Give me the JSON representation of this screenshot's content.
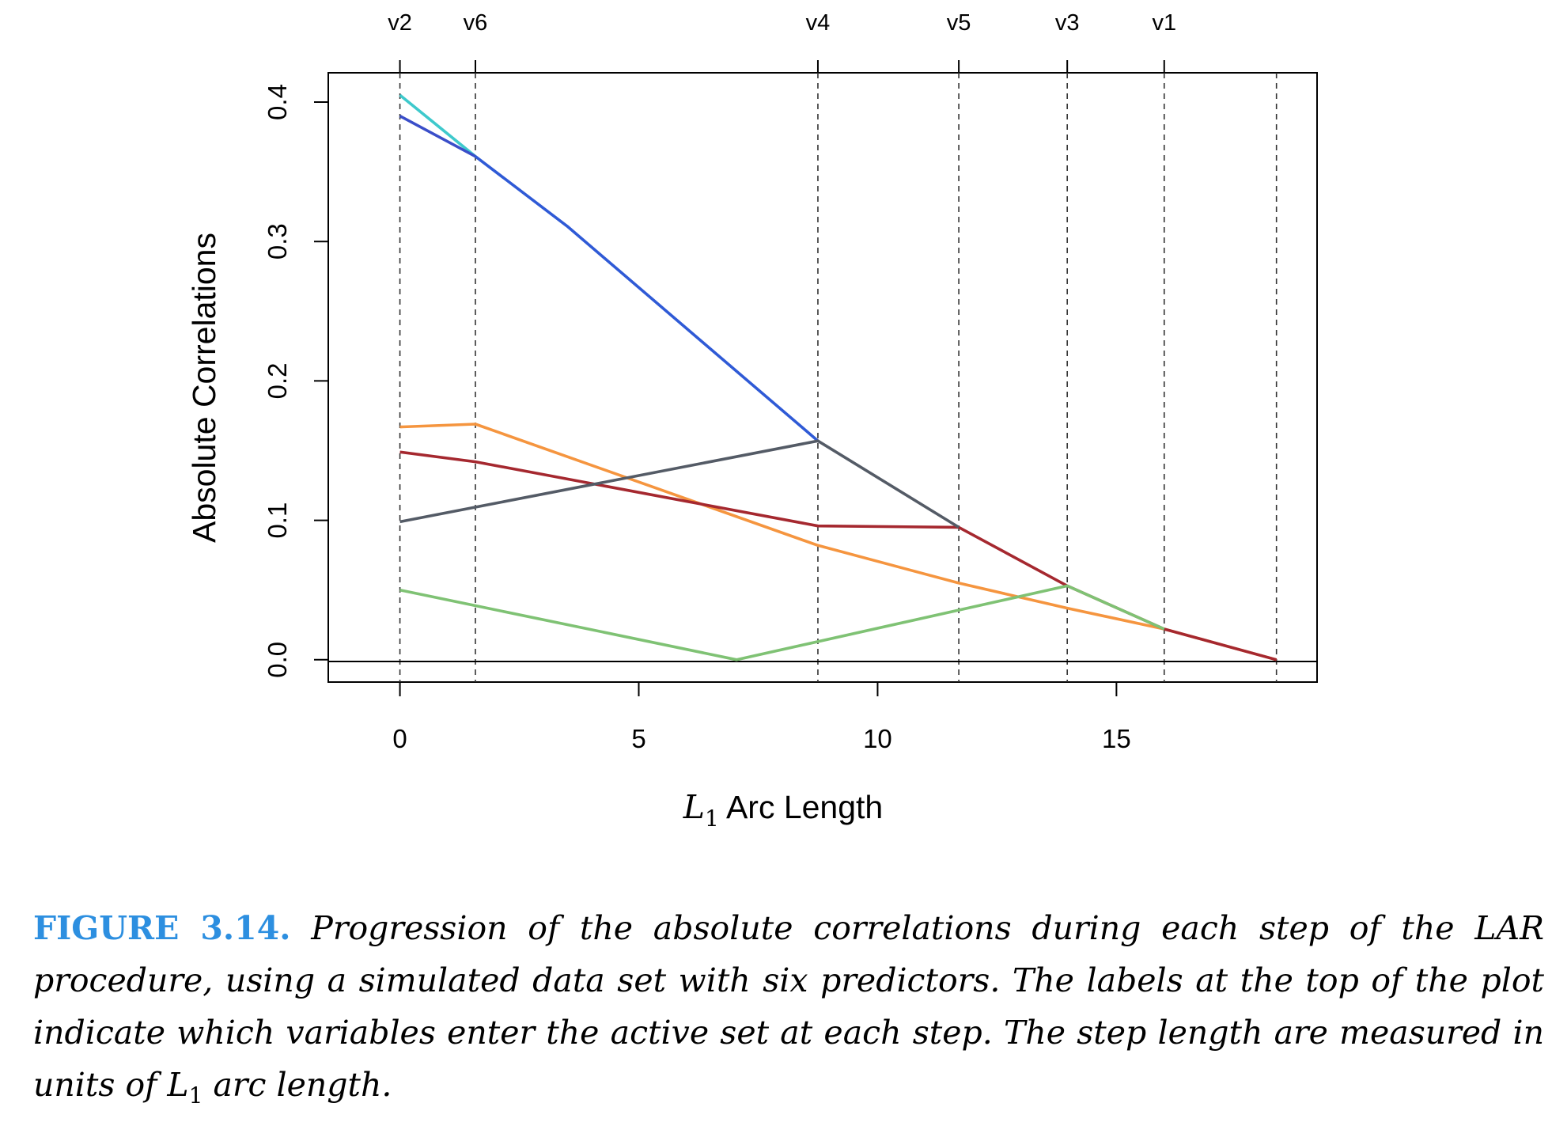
{
  "chart_data": {
    "type": "line",
    "xlabel_var": "L",
    "xlabel_sub": "1",
    "xlabel_rest": " Arc Length",
    "ylabel": "Absolute Correlations",
    "xlim": [
      -1.5,
      19.2
    ],
    "ylim": [
      -0.016,
      0.421
    ],
    "xticks": [
      0,
      5,
      10,
      15
    ],
    "yticks": [
      0.0,
      0.1,
      0.2,
      0.3,
      0.4
    ],
    "ytick_labels": [
      "0.0",
      "0.1",
      "0.2",
      "0.3",
      "0.4"
    ],
    "grid": false,
    "steps": [
      {
        "label": "v2",
        "x": 0.0
      },
      {
        "label": "v6",
        "x": 1.58
      },
      {
        "label": "v4",
        "x": 8.75
      },
      {
        "label": "v5",
        "x": 11.7
      },
      {
        "label": "v3",
        "x": 13.97
      },
      {
        "label": "v1",
        "x": 16.0
      },
      {
        "label": "",
        "x": 18.35
      }
    ],
    "series": [
      {
        "color": "#3ec9cc",
        "x": [
          0,
          1.58
        ],
        "y": [
          0.405,
          0.361
        ]
      },
      {
        "color": "#3a4ec9",
        "x": [
          0,
          1.58
        ],
        "y": [
          0.39,
          0.361
        ]
      },
      {
        "color": "#2f5ad6",
        "x": [
          1.58,
          3.5,
          8.75
        ],
        "y": [
          0.361,
          0.311,
          0.157
        ]
      },
      {
        "color": "#f5953f",
        "x": [
          0,
          1.58,
          8.75,
          11.7,
          13.97,
          16.0,
          18.35
        ],
        "y": [
          0.167,
          0.169,
          0.082,
          0.055,
          0.037,
          0.022,
          0.0
        ]
      },
      {
        "color": "#a5282f",
        "x": [
          0,
          1.58,
          8.75,
          11.7,
          13.97,
          16.0,
          18.35
        ],
        "y": [
          0.149,
          0.142,
          0.096,
          0.095,
          0.053,
          0.022,
          0.0
        ]
      },
      {
        "color": "#545b66",
        "x": [
          0,
          8.75,
          11.7
        ],
        "y": [
          0.099,
          0.157,
          0.095
        ]
      },
      {
        "color": "#7fc274",
        "x": [
          0,
          7.05,
          13.97,
          16.0
        ],
        "y": [
          0.05,
          0.0,
          0.053,
          0.022
        ]
      }
    ]
  },
  "caption": {
    "label": "FIGURE 3.14.",
    "text_before": " Progression of the absolute correlations during each step of the LAR procedure, using a simulated data set with six predictors. The labels at the top of the plot indicate which variables enter the active set at each step. The step length are measured in units of ",
    "l_var": "L",
    "l_sub": "1",
    "text_after": " arc length."
  }
}
